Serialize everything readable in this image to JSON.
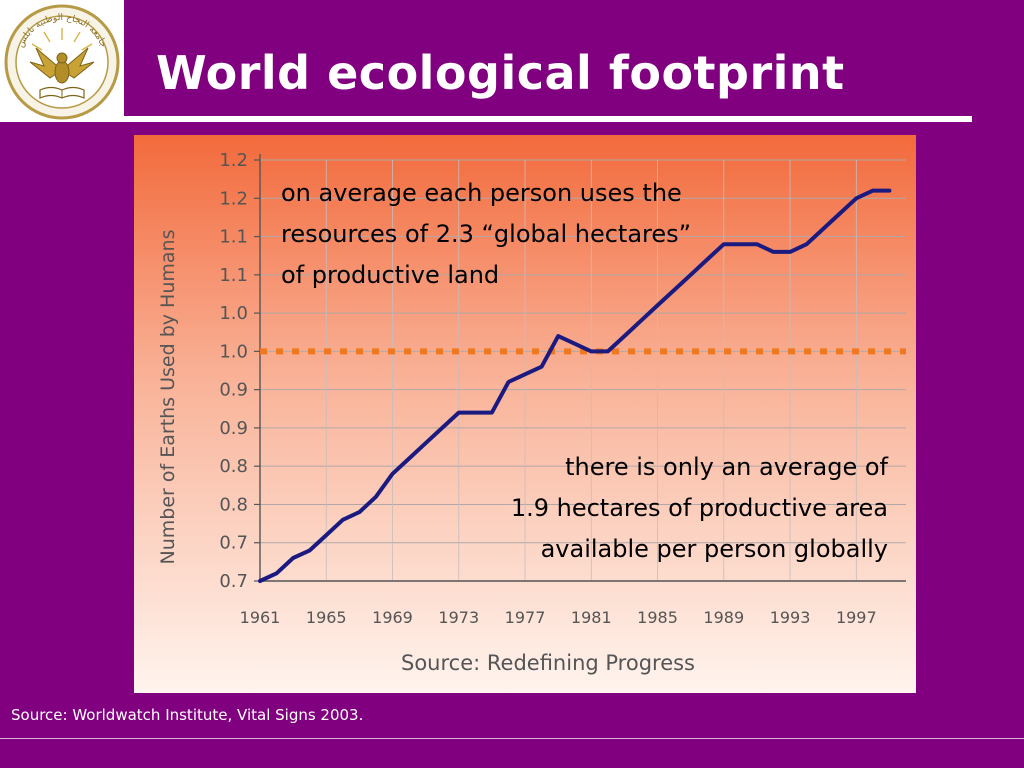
{
  "slide": {
    "title": "World ecological footprint",
    "footer_source": "Source: Worldwatch Institute, Vital Signs 2003."
  },
  "colors": {
    "background": "#800080",
    "line": "#1a1a80",
    "reference_line": "#f07820",
    "panel_gradient_top": "#f26a3c",
    "panel_gradient_bottom": "#fff4ee"
  },
  "logo": {
    "icon": "university-seal-eagle-icon",
    "seal_text": "جامعة النجاح الوطنية نابلس"
  },
  "chart_data": {
    "type": "line",
    "ylabel": "Number of Earths Used by Humans",
    "source_label": "Source: Redefining Progress",
    "x_tick_labels": [
      "1961",
      "1965",
      "1969",
      "1973",
      "1977",
      "1981",
      "1985",
      "1989",
      "1993",
      "1997"
    ],
    "y_tick_labels": [
      "0.7",
      "0.7",
      "0.8",
      "0.8",
      "0.9",
      "0.9",
      "1.0",
      "1.0",
      "1.1",
      "1.1",
      "1.2",
      "1.2"
    ],
    "xlim": [
      1961,
      2000
    ],
    "ylim": [
      0.7,
      1.25
    ],
    "grid": true,
    "series": [
      {
        "x": [
          1961,
          1962,
          1963,
          1964,
          1965,
          1966,
          1967,
          1968,
          1969,
          1970,
          1971,
          1972,
          1973,
          1974,
          1975,
          1976,
          1977,
          1978,
          1979,
          1980,
          1981,
          1982,
          1983,
          1984,
          1985,
          1986,
          1987,
          1988,
          1989,
          1990,
          1991,
          1992,
          1993,
          1994,
          1995,
          1996,
          1997,
          1998,
          1999
        ],
        "y": [
          0.7,
          0.71,
          0.73,
          0.74,
          0.76,
          0.78,
          0.79,
          0.81,
          0.84,
          0.86,
          0.88,
          0.9,
          0.92,
          0.92,
          0.92,
          0.96,
          0.97,
          0.98,
          1.02,
          1.01,
          1.0,
          1.0,
          1.02,
          1.04,
          1.06,
          1.08,
          1.1,
          1.12,
          1.14,
          1.14,
          1.14,
          1.13,
          1.13,
          1.14,
          1.16,
          1.18,
          1.2,
          1.21,
          1.21
        ]
      }
    ],
    "reference_lines": [
      {
        "y": 1.0,
        "style": "dotted"
      }
    ],
    "annotations": [
      {
        "id": "above",
        "lines": [
          "on average each person uses the",
          "resources of 2.3 “global hectares”",
          "of productive land"
        ]
      },
      {
        "id": "below",
        "lines": [
          "there is only an average of",
          "1.9 hectares of productive area",
          "available per person globally"
        ]
      }
    ]
  }
}
